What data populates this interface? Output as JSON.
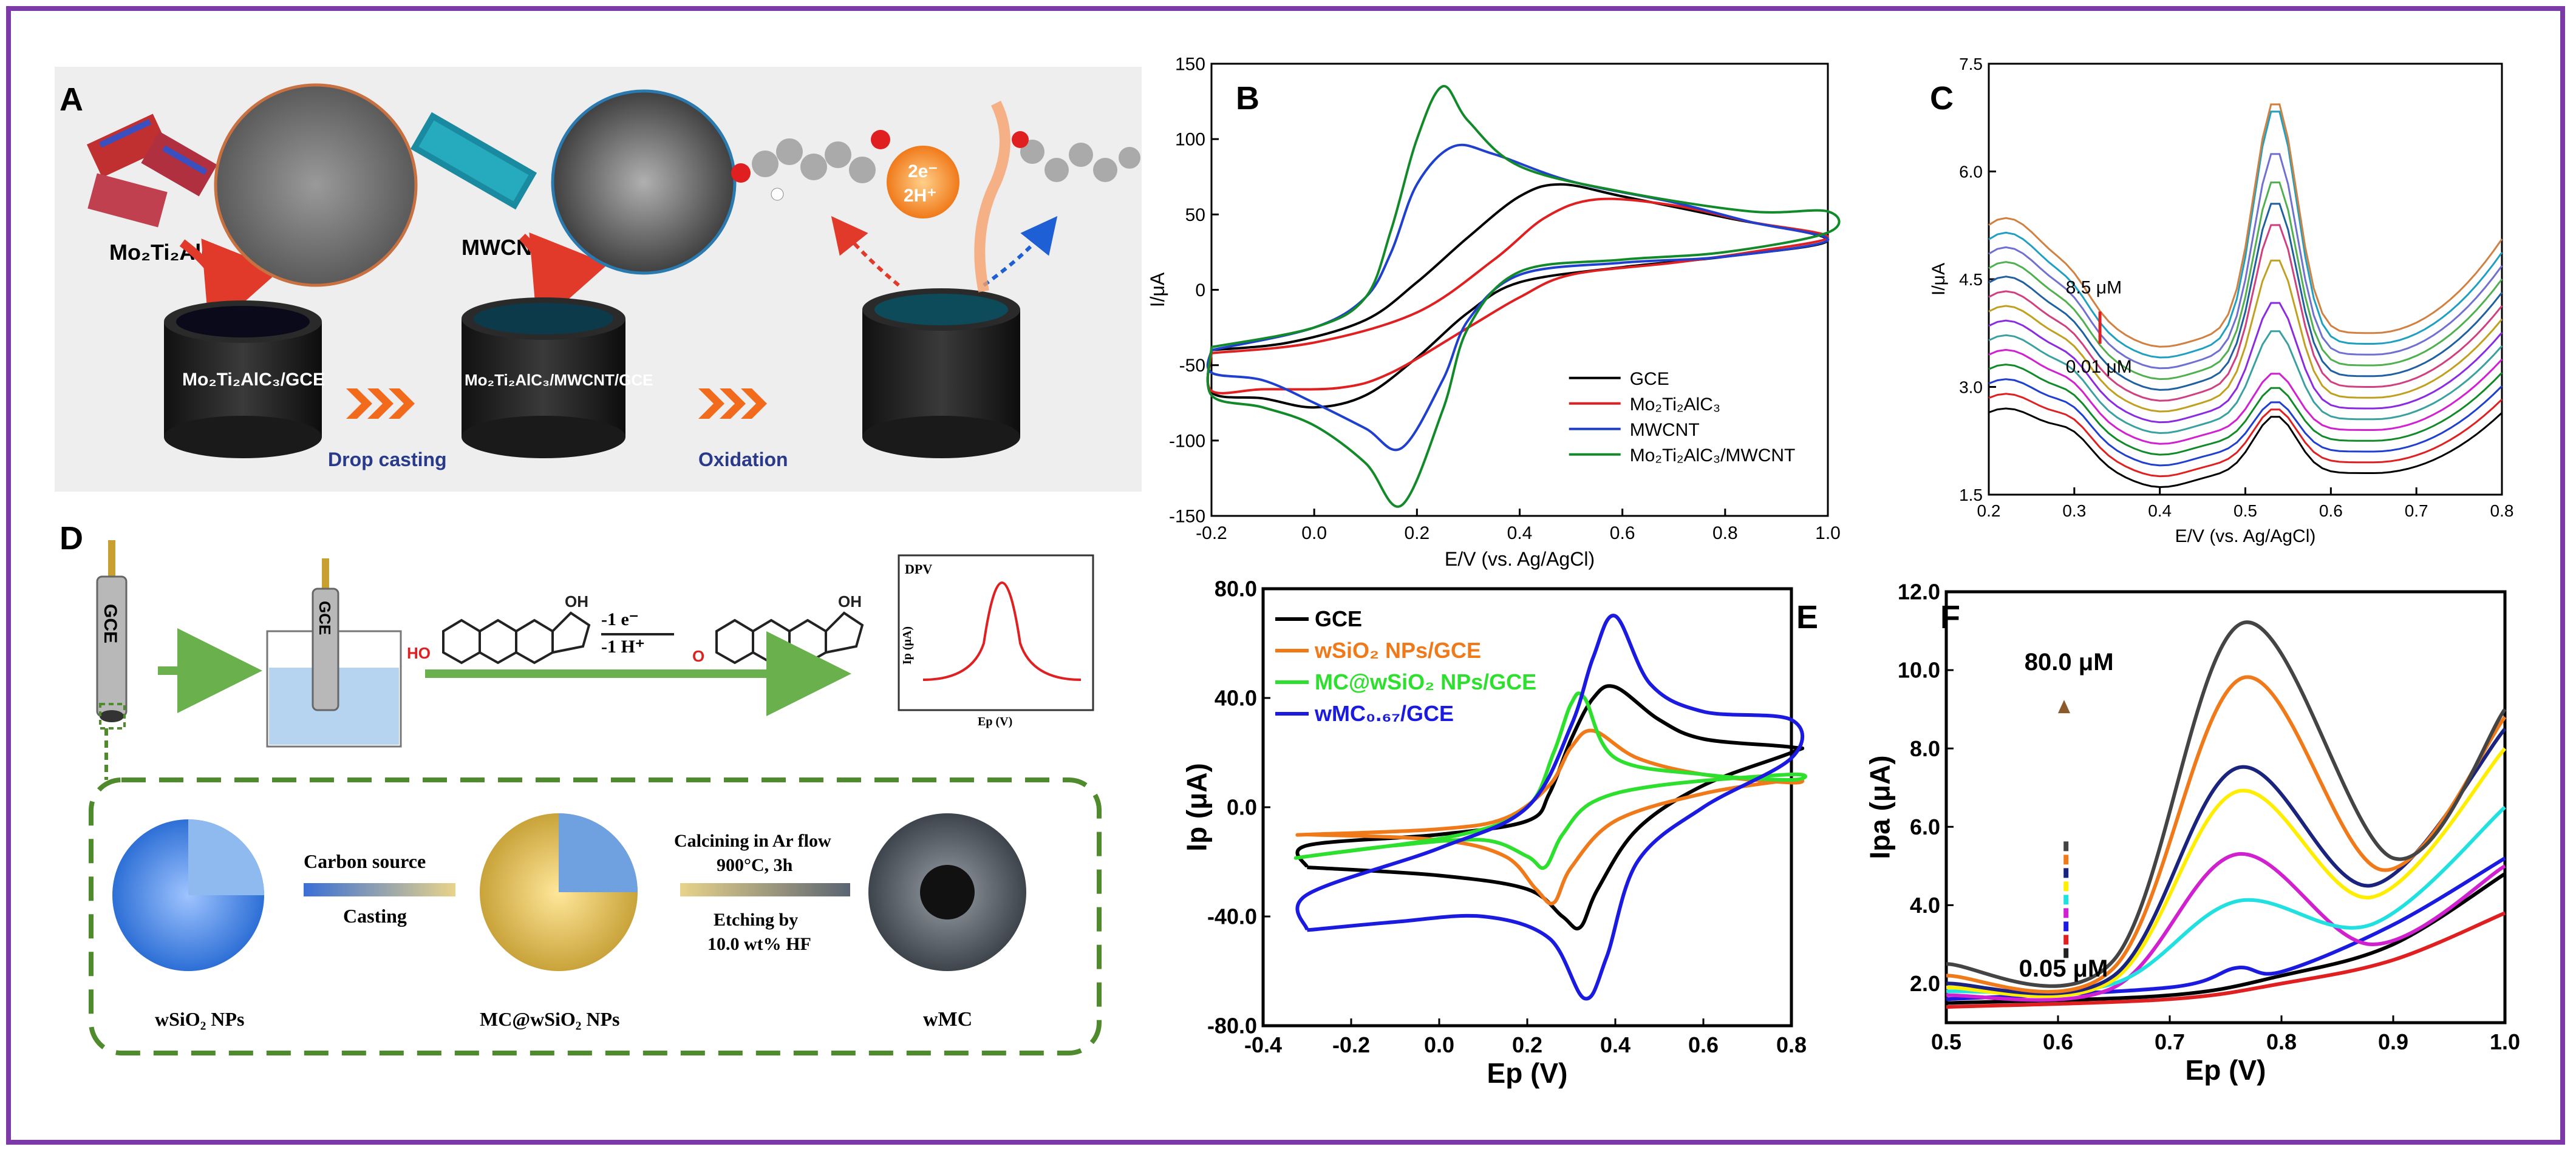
{
  "colors": {
    "border": "#7b3aa8",
    "green_dash": "#4f8a2c",
    "arrow_green": "#6ab04c",
    "orange_arrow": "#f26b1d"
  },
  "panel_labels": {
    "A": "A",
    "B": "B",
    "C": "C",
    "D": "D",
    "E": "E",
    "F": "F"
  },
  "panelA": {
    "mo_label": "Mo₂Ti₂AlC₃",
    "mwcnt_label": "MWCNT",
    "cyl1": "Mo₂Ti₂AlC₃/GCE",
    "cyl2": "Mo₂Ti₂AlC₃/MWCNT/GCE",
    "step1": "Drop casting",
    "step2": "Oxidation",
    "electrons": "2e⁻",
    "protons": "2H⁺"
  },
  "panelD": {
    "gce": "GCE",
    "gce2": "GCE",
    "minus_e": "-1 e⁻",
    "minus_h": "-1 H⁺",
    "ho": "HO",
    "oh1": "OH",
    "oh2": "OH",
    "o": "O",
    "dpv": "DPV",
    "ip": "Ip (μA)",
    "ep": "Ep (V)",
    "carbon_source": "Carbon source",
    "casting": "Casting",
    "calcining": "Calcining  in Ar flow",
    "temp": "900°C, 3h",
    "etching": "Etching by",
    "hf": "10.0 wt% HF",
    "wsio2": "wSiO₂ NPs",
    "mcwsio2": "MC@wSiO₂ NPs",
    "wmc": "wMC"
  },
  "chart_data": [
    {
      "id": "B",
      "type": "line",
      "xlabel": "E/V (vs. Ag/AgCl)",
      "ylabel": "I/μA",
      "xlim": [
        -0.2,
        1.0
      ],
      "ylim": [
        -150,
        150
      ],
      "xticks": [
        -0.2,
        0.0,
        0.2,
        0.4,
        0.6,
        0.8,
        1.0
      ],
      "yticks": [
        -150,
        -100,
        -50,
        0,
        50,
        100,
        150
      ],
      "legend": "bottom-right",
      "series": [
        {
          "name": "GCE",
          "color": "#000000",
          "points": [
            [
              -0.2,
              -40
            ],
            [
              -0.05,
              -35
            ],
            [
              0.1,
              -20
            ],
            [
              0.2,
              5
            ],
            [
              0.3,
              35
            ],
            [
              0.4,
              62
            ],
            [
              0.48,
              70
            ],
            [
              0.6,
              62
            ],
            [
              0.8,
              48
            ],
            [
              1.0,
              33
            ],
            [
              0.8,
              22
            ],
            [
              0.6,
              15
            ],
            [
              0.4,
              5
            ],
            [
              0.3,
              -15
            ],
            [
              0.2,
              -45
            ],
            [
              0.1,
              -70
            ],
            [
              0.0,
              -78
            ],
            [
              -0.1,
              -72
            ],
            [
              -0.2,
              -68
            ]
          ]
        },
        {
          "name": "Mo2Ti2AlC3",
          "color": "#e02020",
          "points": [
            [
              -0.2,
              -42
            ],
            [
              0.0,
              -35
            ],
            [
              0.2,
              -15
            ],
            [
              0.35,
              20
            ],
            [
              0.45,
              48
            ],
            [
              0.55,
              60
            ],
            [
              0.7,
              56
            ],
            [
              0.85,
              45
            ],
            [
              1.0,
              35
            ],
            [
              0.85,
              25
            ],
            [
              0.7,
              18
            ],
            [
              0.5,
              10
            ],
            [
              0.4,
              -5
            ],
            [
              0.3,
              -25
            ],
            [
              0.15,
              -55
            ],
            [
              0.05,
              -65
            ],
            [
              -0.1,
              -66
            ],
            [
              -0.2,
              -67
            ]
          ]
        },
        {
          "name": "MWCNT",
          "color": "#1f3fcf",
          "points": [
            [
              -0.2,
              -40
            ],
            [
              0.0,
              -25
            ],
            [
              0.1,
              -5
            ],
            [
              0.15,
              25
            ],
            [
              0.2,
              70
            ],
            [
              0.27,
              95
            ],
            [
              0.35,
              90
            ],
            [
              0.5,
              72
            ],
            [
              0.7,
              58
            ],
            [
              0.85,
              45
            ],
            [
              1.0,
              33
            ],
            [
              0.8,
              22
            ],
            [
              0.6,
              18
            ],
            [
              0.4,
              10
            ],
            [
              0.3,
              -20
            ],
            [
              0.25,
              -60
            ],
            [
              0.17,
              -105
            ],
            [
              0.1,
              -92
            ],
            [
              0.0,
              -75
            ],
            [
              -0.1,
              -60
            ],
            [
              -0.2,
              -55
            ]
          ]
        },
        {
          "name": "Mo2Ti2AlC3/MWCNT",
          "color": "#128a2a",
          "points": [
            [
              -0.2,
              -38
            ],
            [
              0.0,
              -25
            ],
            [
              0.1,
              -5
            ],
            [
              0.15,
              40
            ],
            [
              0.2,
              100
            ],
            [
              0.25,
              135
            ],
            [
              0.3,
              112
            ],
            [
              0.4,
              82
            ],
            [
              0.6,
              65
            ],
            [
              0.85,
              52
            ],
            [
              1.0,
              52
            ],
            [
              1.0,
              38
            ],
            [
              0.8,
              25
            ],
            [
              0.6,
              20
            ],
            [
              0.4,
              12
            ],
            [
              0.3,
              -25
            ],
            [
              0.25,
              -80
            ],
            [
              0.17,
              -143
            ],
            [
              0.1,
              -115
            ],
            [
              0.0,
              -90
            ],
            [
              -0.1,
              -78
            ],
            [
              -0.2,
              -70
            ]
          ]
        }
      ],
      "legend_entries": [
        "GCE",
        "Mo₂Ti₂AlC₃",
        "MWCNT",
        "Mo₂Ti₂AlC₃/MWCNT"
      ]
    },
    {
      "id": "C",
      "type": "line",
      "xlabel": "E/V (vs. Ag/AgCl)",
      "ylabel": "I/μA",
      "xlim": [
        0.2,
        0.8
      ],
      "ylim": [
        1.5,
        7.5
      ],
      "xticks": [
        0.2,
        0.3,
        0.4,
        0.5,
        0.6,
        0.7,
        0.8
      ],
      "yticks": [
        1.5,
        3.0,
        4.5,
        6.0,
        7.5
      ],
      "annotation_high": "8.5 μM",
      "annotation_low": "0.01 μM",
      "peaks": [
        2.6,
        2.7,
        2.8,
        3.0,
        3.2,
        3.8,
        4.2,
        4.8,
        5.3,
        5.6,
        5.9,
        6.3,
        6.9,
        7.0
      ],
      "colors": [
        "#000000",
        "#e02020",
        "#1f3fcf",
        "#128a2a",
        "#d020d0",
        "#3aa0a0",
        "#8a2be2",
        "#c0a020",
        "#d04080",
        "#2060a0",
        "#50b050",
        "#7070d0",
        "#20a0c0",
        "#d08040"
      ]
    },
    {
      "id": "E",
      "type": "line",
      "xlabel": "Ep (V)",
      "ylabel": "Ip (μA)",
      "xlim": [
        -0.4,
        0.8
      ],
      "ylim": [
        -80,
        80
      ],
      "xticks": [
        -0.4,
        -0.2,
        0.0,
        0.2,
        0.4,
        0.6,
        0.8
      ],
      "yticks": [
        -80,
        -40,
        0,
        40,
        80
      ],
      "legend": "top-left",
      "series": [
        {
          "name": "GCE",
          "color": "#000000",
          "points": [
            [
              -0.3,
              -22
            ],
            [
              0.0,
              -25
            ],
            [
              0.2,
              -30
            ],
            [
              0.28,
              -40
            ],
            [
              0.32,
              -44
            ],
            [
              0.36,
              -30
            ],
            [
              0.45,
              -8
            ],
            [
              0.6,
              8
            ],
            [
              0.8,
              20
            ],
            [
              0.8,
              22
            ],
            [
              0.6,
              25
            ],
            [
              0.5,
              32
            ],
            [
              0.4,
              44
            ],
            [
              0.35,
              40
            ],
            [
              0.3,
              25
            ],
            [
              0.25,
              5
            ],
            [
              0.2,
              -5
            ],
            [
              0.0,
              -10
            ],
            [
              -0.3,
              -14
            ]
          ]
        },
        {
          "name": "wSiO₂ NPs/GCE",
          "color": "#f07a1a",
          "points": [
            [
              -0.3,
              -10
            ],
            [
              0.0,
              -12
            ],
            [
              0.15,
              -18
            ],
            [
              0.22,
              -30
            ],
            [
              0.26,
              -35
            ],
            [
              0.3,
              -22
            ],
            [
              0.4,
              -5
            ],
            [
              0.6,
              5
            ],
            [
              0.8,
              10
            ],
            [
              0.8,
              9
            ],
            [
              0.6,
              12
            ],
            [
              0.45,
              18
            ],
            [
              0.35,
              28
            ],
            [
              0.3,
              22
            ],
            [
              0.25,
              8
            ],
            [
              0.15,
              -4
            ],
            [
              0.0,
              -8
            ],
            [
              -0.3,
              -10
            ]
          ]
        },
        {
          "name": "MC@wSiO₂ NPs/GCE",
          "color": "#2ee02e",
          "points": [
            [
              -0.3,
              -18
            ],
            [
              -0.1,
              -14
            ],
            [
              0.1,
              -12
            ],
            [
              0.2,
              -18
            ],
            [
              0.24,
              -22
            ],
            [
              0.28,
              -10
            ],
            [
              0.35,
              2
            ],
            [
              0.5,
              8
            ],
            [
              0.8,
              12
            ],
            [
              0.8,
              10
            ],
            [
              0.6,
              12
            ],
            [
              0.4,
              18
            ],
            [
              0.33,
              40
            ],
            [
              0.3,
              38
            ],
            [
              0.26,
              20
            ],
            [
              0.2,
              0
            ],
            [
              0.05,
              -10
            ],
            [
              -0.3,
              -18
            ]
          ]
        },
        {
          "name": "wMC0.67/GCE",
          "color": "#1a1ae0",
          "points": [
            [
              -0.3,
              -45
            ],
            [
              -0.1,
              -42
            ],
            [
              0.1,
              -40
            ],
            [
              0.25,
              -48
            ],
            [
              0.33,
              -70
            ],
            [
              0.38,
              -55
            ],
            [
              0.45,
              -20
            ],
            [
              0.6,
              0
            ],
            [
              0.8,
              18
            ],
            [
              0.8,
              32
            ],
            [
              0.6,
              35
            ],
            [
              0.48,
              45
            ],
            [
              0.4,
              70
            ],
            [
              0.35,
              55
            ],
            [
              0.3,
              30
            ],
            [
              0.2,
              0
            ],
            [
              0.0,
              -15
            ],
            [
              -0.3,
              -32
            ]
          ]
        }
      ],
      "legend_entries": [
        "GCE",
        "wSiO₂ NPs/GCE",
        "MC@wSiO₂ NPs/GCE",
        "wMC₀.₆₇/GCE"
      ]
    },
    {
      "id": "F",
      "type": "line",
      "xlabel": "Ep (V)",
      "ylabel": "Ipa (μA)",
      "xlim": [
        0.5,
        1.0
      ],
      "ylim": [
        1.0,
        12.0
      ],
      "xticks": [
        0.5,
        0.6,
        0.7,
        0.8,
        0.9,
        1.0
      ],
      "yticks": [
        2.0,
        4.0,
        6.0,
        8.0,
        10.0,
        12.0
      ],
      "annotation_high": "80.0 μM",
      "annotation_low": "0.05 μM",
      "series": [
        {
          "name": "",
          "color": "#e02020",
          "points": [
            [
              0.5,
              1.4
            ],
            [
              0.7,
              1.6
            ],
            [
              0.8,
              2.0
            ],
            [
              0.9,
              2.6
            ],
            [
              1.0,
              3.8
            ]
          ]
        },
        {
          "name": "",
          "color": "#000000",
          "points": [
            [
              0.5,
              1.5
            ],
            [
              0.7,
              1.7
            ],
            [
              0.8,
              2.2
            ],
            [
              0.9,
              3.0
            ],
            [
              1.0,
              4.8
            ]
          ]
        },
        {
          "name": "",
          "color": "#1a1ae0",
          "points": [
            [
              0.5,
              1.6
            ],
            [
              0.7,
              1.9
            ],
            [
              0.76,
              2.4
            ],
            [
              0.8,
              2.3
            ],
            [
              0.9,
              3.5
            ],
            [
              1.0,
              5.2
            ]
          ]
        },
        {
          "name": "",
          "color": "#d020d0",
          "points": [
            [
              0.5,
              1.7
            ],
            [
              0.65,
              1.9
            ],
            [
              0.76,
              5.3
            ],
            [
              0.88,
              3.0
            ],
            [
              1.0,
              5.0
            ]
          ]
        },
        {
          "name": "",
          "color": "#20e0e0",
          "points": [
            [
              0.5,
              1.8
            ],
            [
              0.65,
              2.0
            ],
            [
              0.76,
              4.1
            ],
            [
              0.88,
              3.5
            ],
            [
              1.0,
              6.5
            ]
          ]
        },
        {
          "name": "",
          "color": "#ffee00",
          "points": [
            [
              0.5,
              1.9
            ],
            [
              0.65,
              2.1
            ],
            [
              0.76,
              6.9
            ],
            [
              0.88,
              4.2
            ],
            [
              1.0,
              8.0
            ]
          ]
        },
        {
          "name": "",
          "color": "#1a237e",
          "points": [
            [
              0.5,
              2.0
            ],
            [
              0.65,
              2.2
            ],
            [
              0.76,
              7.5
            ],
            [
              0.88,
              4.5
            ],
            [
              1.0,
              8.5
            ]
          ]
        },
        {
          "name": "",
          "color": "#f07a1a",
          "points": [
            [
              0.5,
              2.2
            ],
            [
              0.65,
              2.4
            ],
            [
              0.765,
              9.8
            ],
            [
              0.89,
              4.9
            ],
            [
              1.0,
              8.8
            ]
          ]
        },
        {
          "name": "",
          "color": "#444444",
          "points": [
            [
              0.5,
              2.5
            ],
            [
              0.65,
              2.6
            ],
            [
              0.765,
              11.2
            ],
            [
              0.9,
              5.2
            ],
            [
              1.0,
              9.0
            ]
          ]
        }
      ]
    }
  ]
}
